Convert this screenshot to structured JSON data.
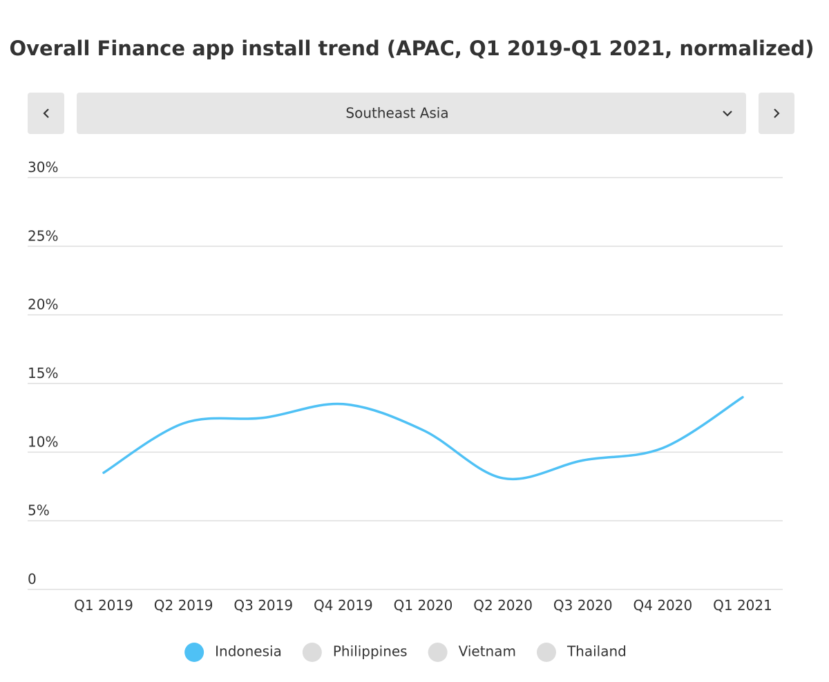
{
  "chart_data": {
    "type": "line",
    "title": "Overall Finance app install trend (APAC, Q1 2019-Q1 2021, normalized)",
    "region": "Southeast Asia",
    "categories": [
      "Q1 2019",
      "Q2 2019",
      "Q3 2019",
      "Q4 2019",
      "Q1 2020",
      "Q2 2020",
      "Q3 2020",
      "Q4 2020",
      "Q1 2021"
    ],
    "series": [
      {
        "name": "Indonesia",
        "color": "#4fc1f5",
        "values": [
          8.5,
          12.1,
          12.5,
          13.5,
          11.6,
          8.1,
          9.4,
          10.3,
          14.0
        ]
      }
    ],
    "hidden_series": [
      {
        "name": "Philippines",
        "color": "#dcdcdc"
      },
      {
        "name": "Vietnam",
        "color": "#dcdcdc"
      },
      {
        "name": "Thailand",
        "color": "#dcdcdc"
      }
    ],
    "ylim": [
      0,
      30
    ],
    "yticks": [
      0,
      {
        "value": 5,
        "label": "5%"
      },
      {
        "value": 10,
        "label": "10%"
      },
      {
        "value": 15,
        "label": "15%"
      },
      {
        "value": 20,
        "label": "20%"
      },
      {
        "value": 25,
        "label": "25%"
      },
      {
        "value": 30,
        "label": "30%"
      }
    ],
    "grid": true,
    "smooth": true
  }
}
